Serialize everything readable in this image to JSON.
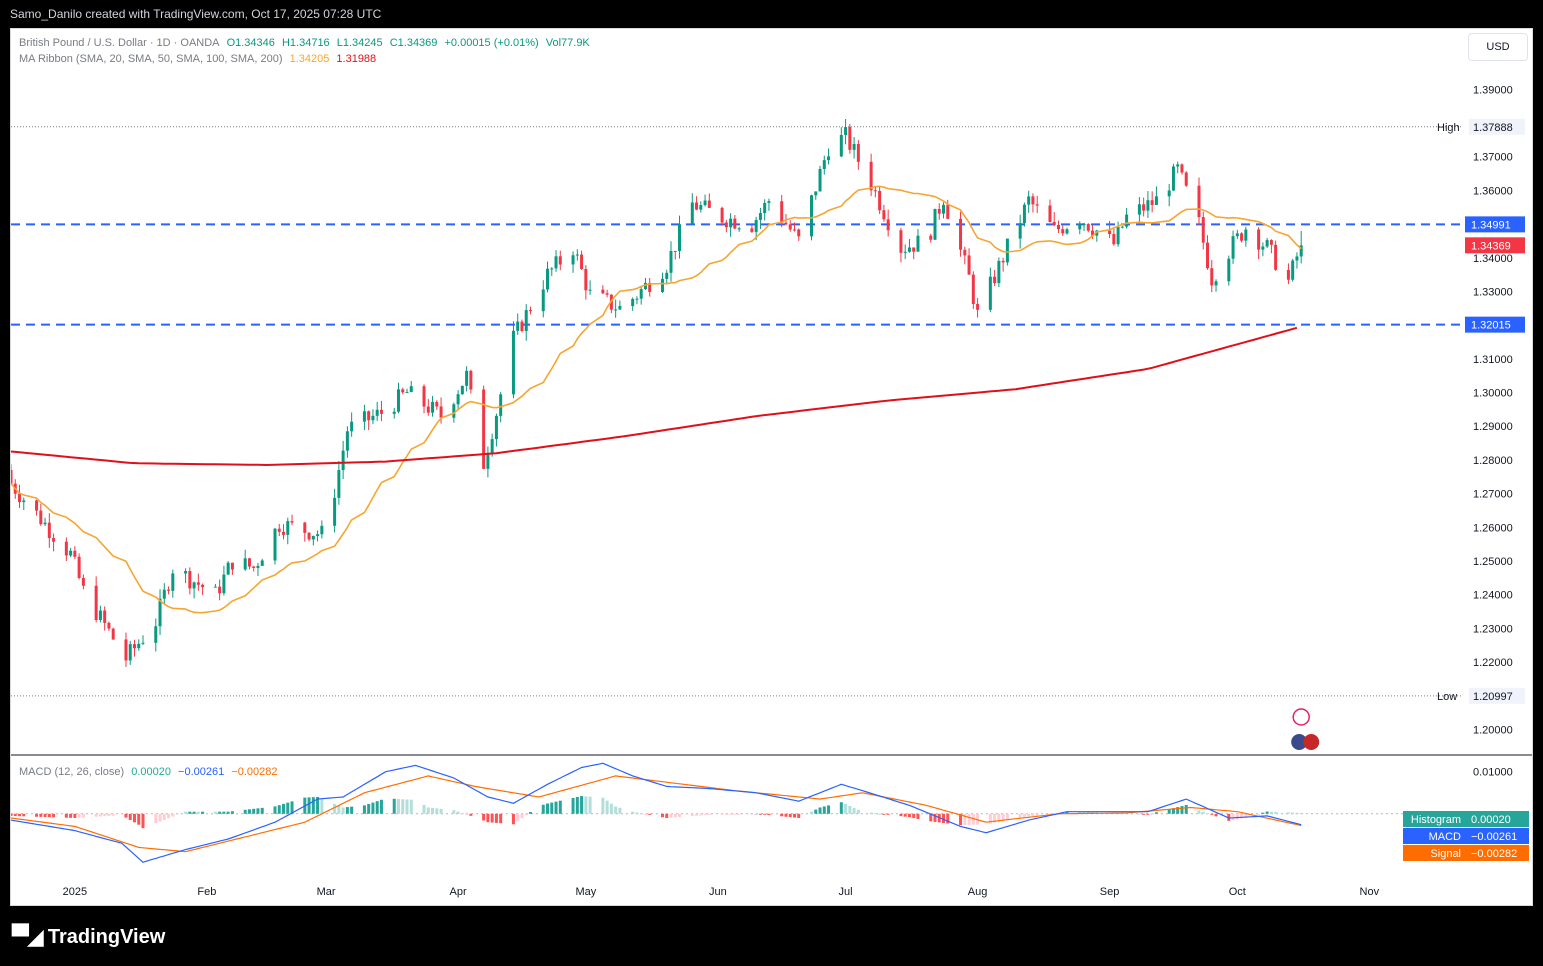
{
  "topbar": {
    "text": "Samo_Danilo created with TradingView.com, Oct 17, 2025 07:28 UTC"
  },
  "legend": {
    "symbol": "British Pound / U.S. Dollar · 1D · OANDA",
    "open": "O1.34346",
    "high": "H1.34716",
    "low": "L1.34245",
    "close": "C1.34369",
    "change": "+0.00015 (+0.01%)",
    "vol": "Vol77.9K",
    "ma_label": "MA Ribbon (SMA, 20, SMA, 50, SMA, 100, SMA, 200)",
    "ma_val1": "1.34205",
    "ma_val2": "1.31988"
  },
  "macd_legend": {
    "label": "MACD (12, 26, close)",
    "v1": "0.00020",
    "v2": "−0.00261",
    "v3": "−0.00282"
  },
  "currency": "USD",
  "footer": {
    "brand": "TradingView",
    "logo_icon": "tradingview-logo-icon"
  },
  "colors": {
    "up": "#089981",
    "down": "#f23645",
    "sma20": "#f7a531",
    "sma200": "#e0101a",
    "level": "#2962ff",
    "macd": "#2962ff",
    "signal": "#ff6d00"
  },
  "chart_data": [
    {
      "type": "candlestick",
      "title": "British Pound / U.S. Dollar · 1D · OANDA",
      "ylim": [
        1.193,
        1.399
      ],
      "y_ticks": [
        "1.20000",
        "1.21000",
        "1.22000",
        "1.23000",
        "1.24000",
        "1.25000",
        "1.26000",
        "1.27000",
        "1.28000",
        "1.29000",
        "1.30000",
        "1.31000",
        "1.32000",
        "1.33000",
        "1.34000",
        "1.35000",
        "1.36000",
        "1.37000",
        "1.39000"
      ],
      "x_ticks": [
        {
          "label": "2025",
          "date": "2025-01-01"
        },
        {
          "label": "Feb",
          "date": "2025-02-01"
        },
        {
          "label": "Mar",
          "date": "2025-03-01"
        },
        {
          "label": "Apr",
          "date": "2025-04-01"
        },
        {
          "label": "May",
          "date": "2025-05-01"
        },
        {
          "label": "Jun",
          "date": "2025-06-01"
        },
        {
          "label": "Jul",
          "date": "2025-07-01"
        },
        {
          "label": "Aug",
          "date": "2025-08-01"
        },
        {
          "label": "Sep",
          "date": "2025-09-01"
        },
        {
          "label": "Oct",
          "date": "2025-10-01"
        },
        {
          "label": "Nov",
          "date": "2025-11-01"
        }
      ],
      "x_range": [
        "2024-12-17",
        "2025-11-23"
      ],
      "close_path": [
        [
          "2024-12-17",
          1.273
        ],
        [
          "2024-12-31",
          1.252
        ],
        [
          "2025-01-03",
          1.241
        ],
        [
          "2025-01-13",
          1.221
        ],
        [
          "2025-01-20",
          1.232
        ],
        [
          "2025-01-24",
          1.248
        ],
        [
          "2025-02-03",
          1.24
        ],
        [
          "2025-02-07",
          1.25
        ],
        [
          "2025-02-12",
          1.248
        ],
        [
          "2025-02-18",
          1.261
        ],
        [
          "2025-02-28",
          1.258
        ],
        [
          "2025-03-03",
          1.271
        ],
        [
          "2025-03-06",
          1.289
        ],
        [
          "2025-03-14",
          1.294
        ],
        [
          "2025-03-20",
          1.3
        ],
        [
          "2025-03-28",
          1.293
        ],
        [
          "2025-04-03",
          1.305
        ],
        [
          "2025-04-07",
          1.279
        ],
        [
          "2025-04-10",
          1.294
        ],
        [
          "2025-04-14",
          1.316
        ],
        [
          "2025-04-22",
          1.335
        ],
        [
          "2025-04-28",
          1.343
        ],
        [
          "2025-05-02",
          1.329
        ],
        [
          "2025-05-09",
          1.325
        ],
        [
          "2025-05-13",
          1.329
        ],
        [
          "2025-05-20",
          1.338
        ],
        [
          "2025-05-26",
          1.356
        ],
        [
          "2025-06-02",
          1.352
        ],
        [
          "2025-06-09",
          1.35
        ],
        [
          "2025-06-13",
          1.357
        ],
        [
          "2025-06-20",
          1.345
        ],
        [
          "2025-06-23",
          1.357
        ],
        [
          "2025-06-27",
          1.373
        ],
        [
          "2025-07-01",
          1.376
        ],
        [
          "2025-07-07",
          1.362
        ],
        [
          "2025-07-14",
          1.343
        ],
        [
          "2025-07-20",
          1.345
        ],
        [
          "2025-07-24",
          1.358
        ],
        [
          "2025-07-30",
          1.334
        ],
        [
          "2025-08-01",
          1.323
        ],
        [
          "2025-08-08",
          1.343
        ],
        [
          "2025-08-13",
          1.357
        ],
        [
          "2025-08-19",
          1.348
        ],
        [
          "2025-08-25",
          1.352
        ],
        [
          "2025-09-02",
          1.344
        ],
        [
          "2025-09-05",
          1.352
        ],
        [
          "2025-09-12",
          1.357
        ],
        [
          "2025-09-17",
          1.366
        ],
        [
          "2025-09-22",
          1.35
        ],
        [
          "2025-09-25",
          1.334
        ],
        [
          "2025-09-30",
          1.344
        ],
        [
          "2025-10-03",
          1.349
        ],
        [
          "2025-10-08",
          1.343
        ],
        [
          "2025-10-13",
          1.333
        ],
        [
          "2025-10-16",
          1.344
        ]
      ],
      "series": [
        {
          "name": "SMA 20",
          "value": "1.34205"
        },
        {
          "name": "SMA 200",
          "value": "1.31988",
          "points": [
            [
              "2024-12-17",
              1.2825
            ],
            [
              "2025-01-15",
              1.279
            ],
            [
              "2025-02-15",
              1.2785
            ],
            [
              "2025-03-15",
              1.2795
            ],
            [
              "2025-04-10",
              1.282
            ],
            [
              "2025-05-10",
              1.287
            ],
            [
              "2025-06-10",
              1.293
            ],
            [
              "2025-07-10",
              1.2975
            ],
            [
              "2025-08-10",
              1.301
            ],
            [
              "2025-09-10",
              1.307
            ],
            [
              "2025-10-17",
              1.3199
            ]
          ]
        }
      ],
      "levels": [
        {
          "name": "High",
          "value": 1.37888,
          "label": "1.37888",
          "style": "dotted"
        },
        {
          "name": "Low",
          "value": 1.20997,
          "label": "1.20997",
          "style": "dotted"
        },
        {
          "value": 1.34991,
          "label": "1.34991",
          "style": "dashed"
        },
        {
          "value": 1.32015,
          "label": "1.32015",
          "style": "dashed"
        }
      ],
      "last_price": {
        "value": 1.34369,
        "label": "1.34369"
      }
    },
    {
      "type": "macd",
      "title": "MACD (12, 26, close)",
      "y_ticks": [
        "0.01000"
      ],
      "ylim": [
        -0.0155,
        0.0135
      ],
      "latest": {
        "histogram": "0.00020",
        "macd": "−0.00261",
        "signal": "−0.00282"
      },
      "macd_line": [
        [
          "2024-12-17",
          -0.0015
        ],
        [
          "2025-01-01",
          -0.004
        ],
        [
          "2025-01-12",
          -0.007
        ],
        [
          "2025-01-17",
          -0.0115
        ],
        [
          "2025-01-27",
          -0.0085
        ],
        [
          "2025-02-06",
          -0.006
        ],
        [
          "2025-02-17",
          -0.002
        ],
        [
          "2025-02-27",
          0.0035
        ],
        [
          "2025-03-05",
          0.004
        ],
        [
          "2025-03-15",
          0.01
        ],
        [
          "2025-03-22",
          0.0115
        ],
        [
          "2025-03-31",
          0.0085
        ],
        [
          "2025-04-08",
          0.004
        ],
        [
          "2025-04-14",
          0.0025
        ],
        [
          "2025-04-22",
          0.007
        ],
        [
          "2025-04-30",
          0.011
        ],
        [
          "2025-05-05",
          0.012
        ],
        [
          "2025-05-12",
          0.009
        ],
        [
          "2025-05-20",
          0.0065
        ],
        [
          "2025-05-30",
          0.006
        ],
        [
          "2025-06-10",
          0.005
        ],
        [
          "2025-06-20",
          0.003
        ],
        [
          "2025-06-30",
          0.007
        ],
        [
          "2025-07-05",
          0.0055
        ],
        [
          "2025-07-16",
          0.002
        ],
        [
          "2025-07-28",
          -0.003
        ],
        [
          "2025-08-03",
          -0.0045
        ],
        [
          "2025-08-13",
          -0.0015
        ],
        [
          "2025-08-22",
          0.0005
        ],
        [
          "2025-09-01",
          0.0005
        ],
        [
          "2025-09-10",
          0.0005
        ],
        [
          "2025-09-19",
          0.0035
        ],
        [
          "2025-09-29",
          -0.001
        ],
        [
          "2025-10-08",
          -0.0005
        ],
        [
          "2025-10-16",
          -0.0026
        ]
      ],
      "signal_line": [
        [
          "2024-12-17",
          -0.001
        ],
        [
          "2025-01-01",
          -0.003
        ],
        [
          "2025-01-16",
          -0.008
        ],
        [
          "2025-01-27",
          -0.009
        ],
        [
          "2025-02-10",
          -0.0055
        ],
        [
          "2025-02-24",
          -0.002
        ],
        [
          "2025-03-10",
          0.005
        ],
        [
          "2025-03-25",
          0.009
        ],
        [
          "2025-04-05",
          0.0065
        ],
        [
          "2025-04-20",
          0.004
        ],
        [
          "2025-05-08",
          0.009
        ],
        [
          "2025-05-20",
          0.0075
        ],
        [
          "2025-06-05",
          0.0055
        ],
        [
          "2025-06-25",
          0.0035
        ],
        [
          "2025-07-05",
          0.005
        ],
        [
          "2025-07-20",
          0.002
        ],
        [
          "2025-08-03",
          -0.002
        ],
        [
          "2025-08-20",
          0.0
        ],
        [
          "2025-09-05",
          0.0002
        ],
        [
          "2025-09-20",
          0.0015
        ],
        [
          "2025-10-01",
          0.0005
        ],
        [
          "2025-10-16",
          -0.0028
        ]
      ]
    }
  ]
}
